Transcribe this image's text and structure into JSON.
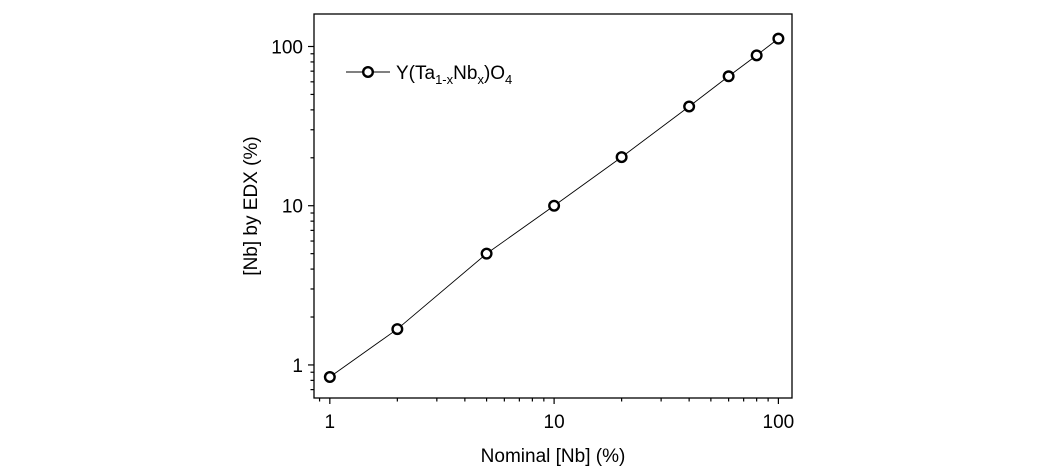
{
  "chart_data": {
    "type": "scatter",
    "x_scale": "log",
    "y_scale": "log",
    "xlabel": "Nominal [Nb] (%)",
    "ylabel": "[Nb] by EDX (%)",
    "xlim": [
      0.85,
      115
    ],
    "ylim": [
      0.62,
      160
    ],
    "x_ticks": [
      1,
      10,
      100
    ],
    "x_tick_labels": [
      "1",
      "10",
      "100"
    ],
    "y_ticks": [
      1,
      10,
      100
    ],
    "y_tick_labels": [
      "1",
      "10",
      "100"
    ],
    "grid": false,
    "legend_position": "top-left",
    "legend": {
      "base": "Y(Ta",
      "sub1": "1-x",
      "mid": "Nb",
      "sub2": "x",
      "close": ")O",
      "sub3": "4"
    },
    "series": [
      {
        "marker": "open-circle",
        "line": "solid",
        "color": "#000000",
        "x": [
          1,
          2,
          5,
          10,
          20,
          40,
          60,
          80,
          100
        ],
        "y": [
          0.84,
          1.68,
          5.0,
          10.0,
          20.2,
          42.0,
          65.0,
          88.0,
          112.0
        ]
      }
    ]
  }
}
